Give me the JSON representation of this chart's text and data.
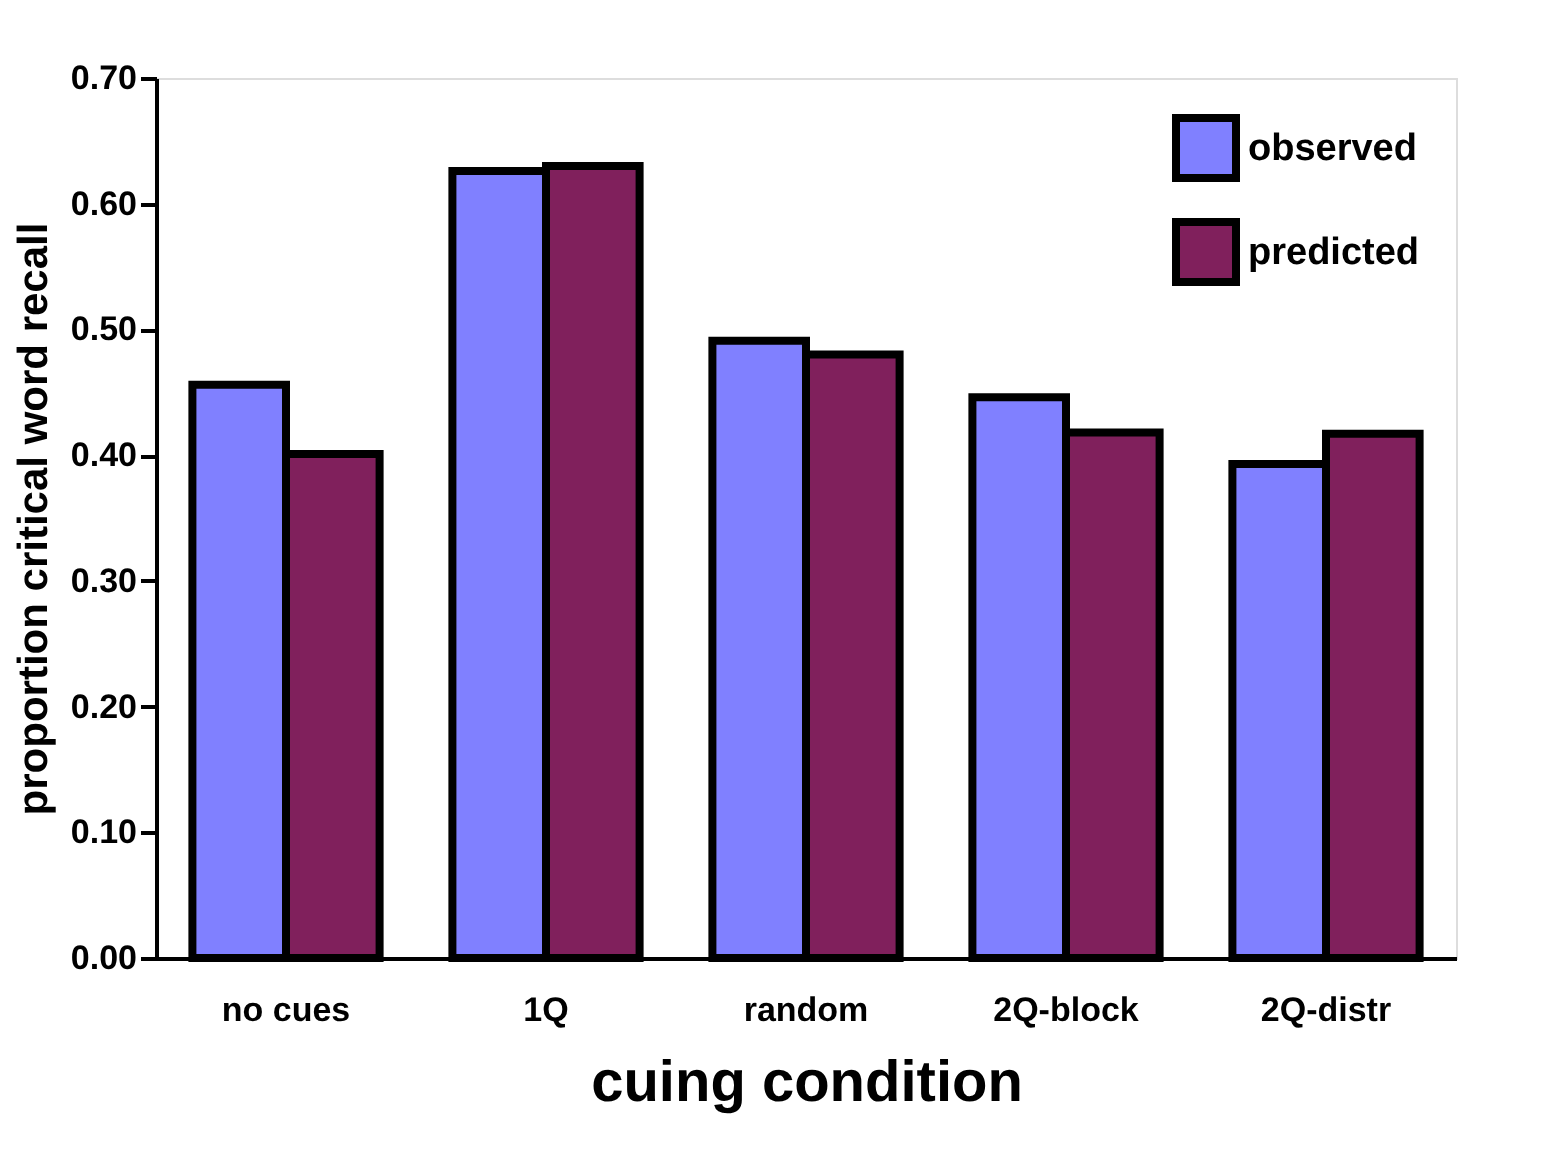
{
  "chart_data": {
    "type": "bar",
    "xlabel": "cuing condition",
    "ylabel": "proportion critical word recall",
    "categories": [
      "no cues",
      "1Q",
      "random",
      "2Q-block",
      "2Q-distr"
    ],
    "series": [
      {
        "name": "observed",
        "color": "#8080ff",
        "values": [
          0.456,
          0.626,
          0.491,
          0.446,
          0.393
        ]
      },
      {
        "name": "predicted",
        "color": "#80205c",
        "values": [
          0.401,
          0.63,
          0.48,
          0.418,
          0.417
        ]
      }
    ],
    "ylim": [
      0,
      0.7
    ],
    "yticks": [
      {
        "value": 0,
        "label": "0.00"
      },
      {
        "value": 0.1,
        "label": "0.10"
      },
      {
        "value": 0.2,
        "label": "0.20"
      },
      {
        "value": 0.3,
        "label": "0.30"
      },
      {
        "value": 0.4,
        "label": "0.40"
      },
      {
        "value": 0.5,
        "label": "0.50"
      },
      {
        "value": 0.6,
        "label": "0.60"
      },
      {
        "value": 0.7,
        "label": "0.70"
      }
    ],
    "grid": false,
    "legend": "top right"
  }
}
